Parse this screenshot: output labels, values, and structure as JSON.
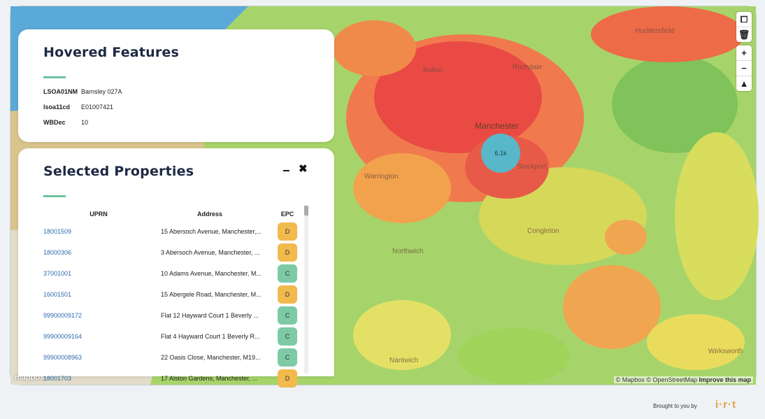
{
  "map": {
    "labels": [
      "Manchester",
      "Rochdale",
      "Bolton",
      "Huddersfield",
      "Warrington",
      "Northwich",
      "Congleton",
      "Nantwich",
      "Wirksworth",
      "Stockport"
    ],
    "cluster_count": "6.1k",
    "attribution": {
      "mapbox": "© Mapbox",
      "osm": "© OpenStreetMap",
      "improve": "Improve this map"
    },
    "logo": "mapbox"
  },
  "hovered": {
    "title": "Hovered Features",
    "fields": [
      {
        "key": "LSOA01NM",
        "value": "Barnsley 027A"
      },
      {
        "key": "lsoa11cd",
        "value": "E01007421"
      },
      {
        "key": "WBDec",
        "value": "10"
      }
    ]
  },
  "selected": {
    "title": "Selected Properties",
    "headers": {
      "uprn": "UPRN",
      "address": "Address",
      "epc": "EPC"
    },
    "rows": [
      {
        "uprn": "18001509",
        "address": "15 Abersoch Avenue, Manchester,...",
        "epc": "D"
      },
      {
        "uprn": "18000306",
        "address": "3 Abersoch Avenue, Manchester, ...",
        "epc": "D"
      },
      {
        "uprn": "37001001",
        "address": "10 Adams Avenue, Manchester, M...",
        "epc": "C"
      },
      {
        "uprn": "16001501",
        "address": "15 Abergele Road, Manchester, M...",
        "epc": "D"
      },
      {
        "uprn": "99900009172",
        "address": "Flat 12 Hayward Court 1 Beverly ...",
        "epc": "C"
      },
      {
        "uprn": "99900009164",
        "address": "Flat 4 Hayward Court 1 Beverly R...",
        "epc": "C"
      },
      {
        "uprn": "99900008963",
        "address": "22 Oasis Close, Manchester, M19...",
        "epc": "C"
      },
      {
        "uprn": "18001703",
        "address": "17 Alston Gardens, Manchester, ...",
        "epc": "D"
      }
    ]
  },
  "footer": {
    "brought": "Brought to you by",
    "logo": "i·r·t"
  },
  "colors": {
    "accent": "#6cc3a0",
    "epc_D": "#f2b94c",
    "epc_C": "#7dcaa5",
    "cluster": "#58b7c9"
  }
}
